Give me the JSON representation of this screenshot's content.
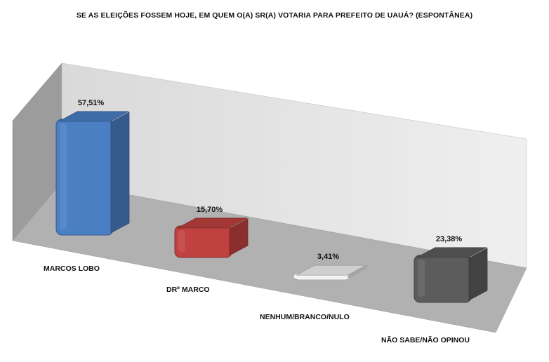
{
  "chart_data": {
    "type": "bar",
    "title": "SE AS ELEIÇÕES FOSSEM HOJE, EM QUEM O(A) SR(A) VOTARIA PARA PREFEITO DE UAUÁ? (ESPONTÂNEA)",
    "categories": [
      "MARCOS LOBO",
      "DRº MARCO",
      "NENHUM/BRANCO/NULO",
      "NÃO SABE/NÃO OPINOU"
    ],
    "values": [
      57.51,
      15.7,
      3.41,
      23.38
    ],
    "value_labels": [
      "57,51%",
      "15,70%",
      "3,41%",
      "23,38%"
    ],
    "colors": [
      "#4a7fc4",
      "#c0413f",
      "#f3f3f3",
      "#5c5c5c"
    ],
    "ylim": [
      0,
      60
    ],
    "three_d": true,
    "grid": false,
    "legend": "none"
  }
}
